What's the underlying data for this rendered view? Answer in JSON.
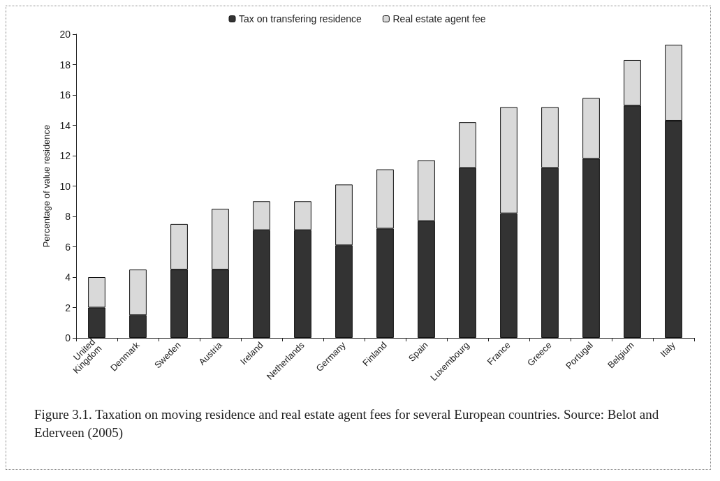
{
  "chart_data": {
    "type": "bar",
    "stacked": true,
    "ylabel": "Percentage of value residence",
    "categories": [
      "United Kingdom",
      "Denmark",
      "Sweden",
      "Austria",
      "Ireland",
      "Netherlands",
      "Germany",
      "Finland",
      "Spain",
      "Luxembourg",
      "France",
      "Greece",
      "Portugal",
      "Belgium",
      "Italy"
    ],
    "series": [
      {
        "name": "Tax on transfering residence",
        "color": "#333333",
        "values": [
          2,
          1.5,
          4.5,
          4.5,
          7.1,
          7.1,
          6.1,
          7.2,
          7.7,
          11.2,
          8.2,
          11.2,
          11.8,
          15.3,
          14.3
        ]
      },
      {
        "name": "Real estate agent fee",
        "color": "#d9d9d9",
        "values": [
          2,
          3,
          3,
          4,
          1.9,
          1.9,
          4,
          3.9,
          4,
          3,
          7,
          4,
          4,
          3,
          5
        ]
      }
    ],
    "ylim": [
      0,
      20
    ],
    "yticks": [
      0,
      2,
      4,
      6,
      8,
      10,
      12,
      14,
      16,
      18,
      20
    ],
    "grid": false,
    "legend": "top",
    "annotations": [
      "Figure 3.1. Taxation on moving residence and real estate agent fees for several European countries. Source: Belot and Ederveen (2005)"
    ]
  }
}
